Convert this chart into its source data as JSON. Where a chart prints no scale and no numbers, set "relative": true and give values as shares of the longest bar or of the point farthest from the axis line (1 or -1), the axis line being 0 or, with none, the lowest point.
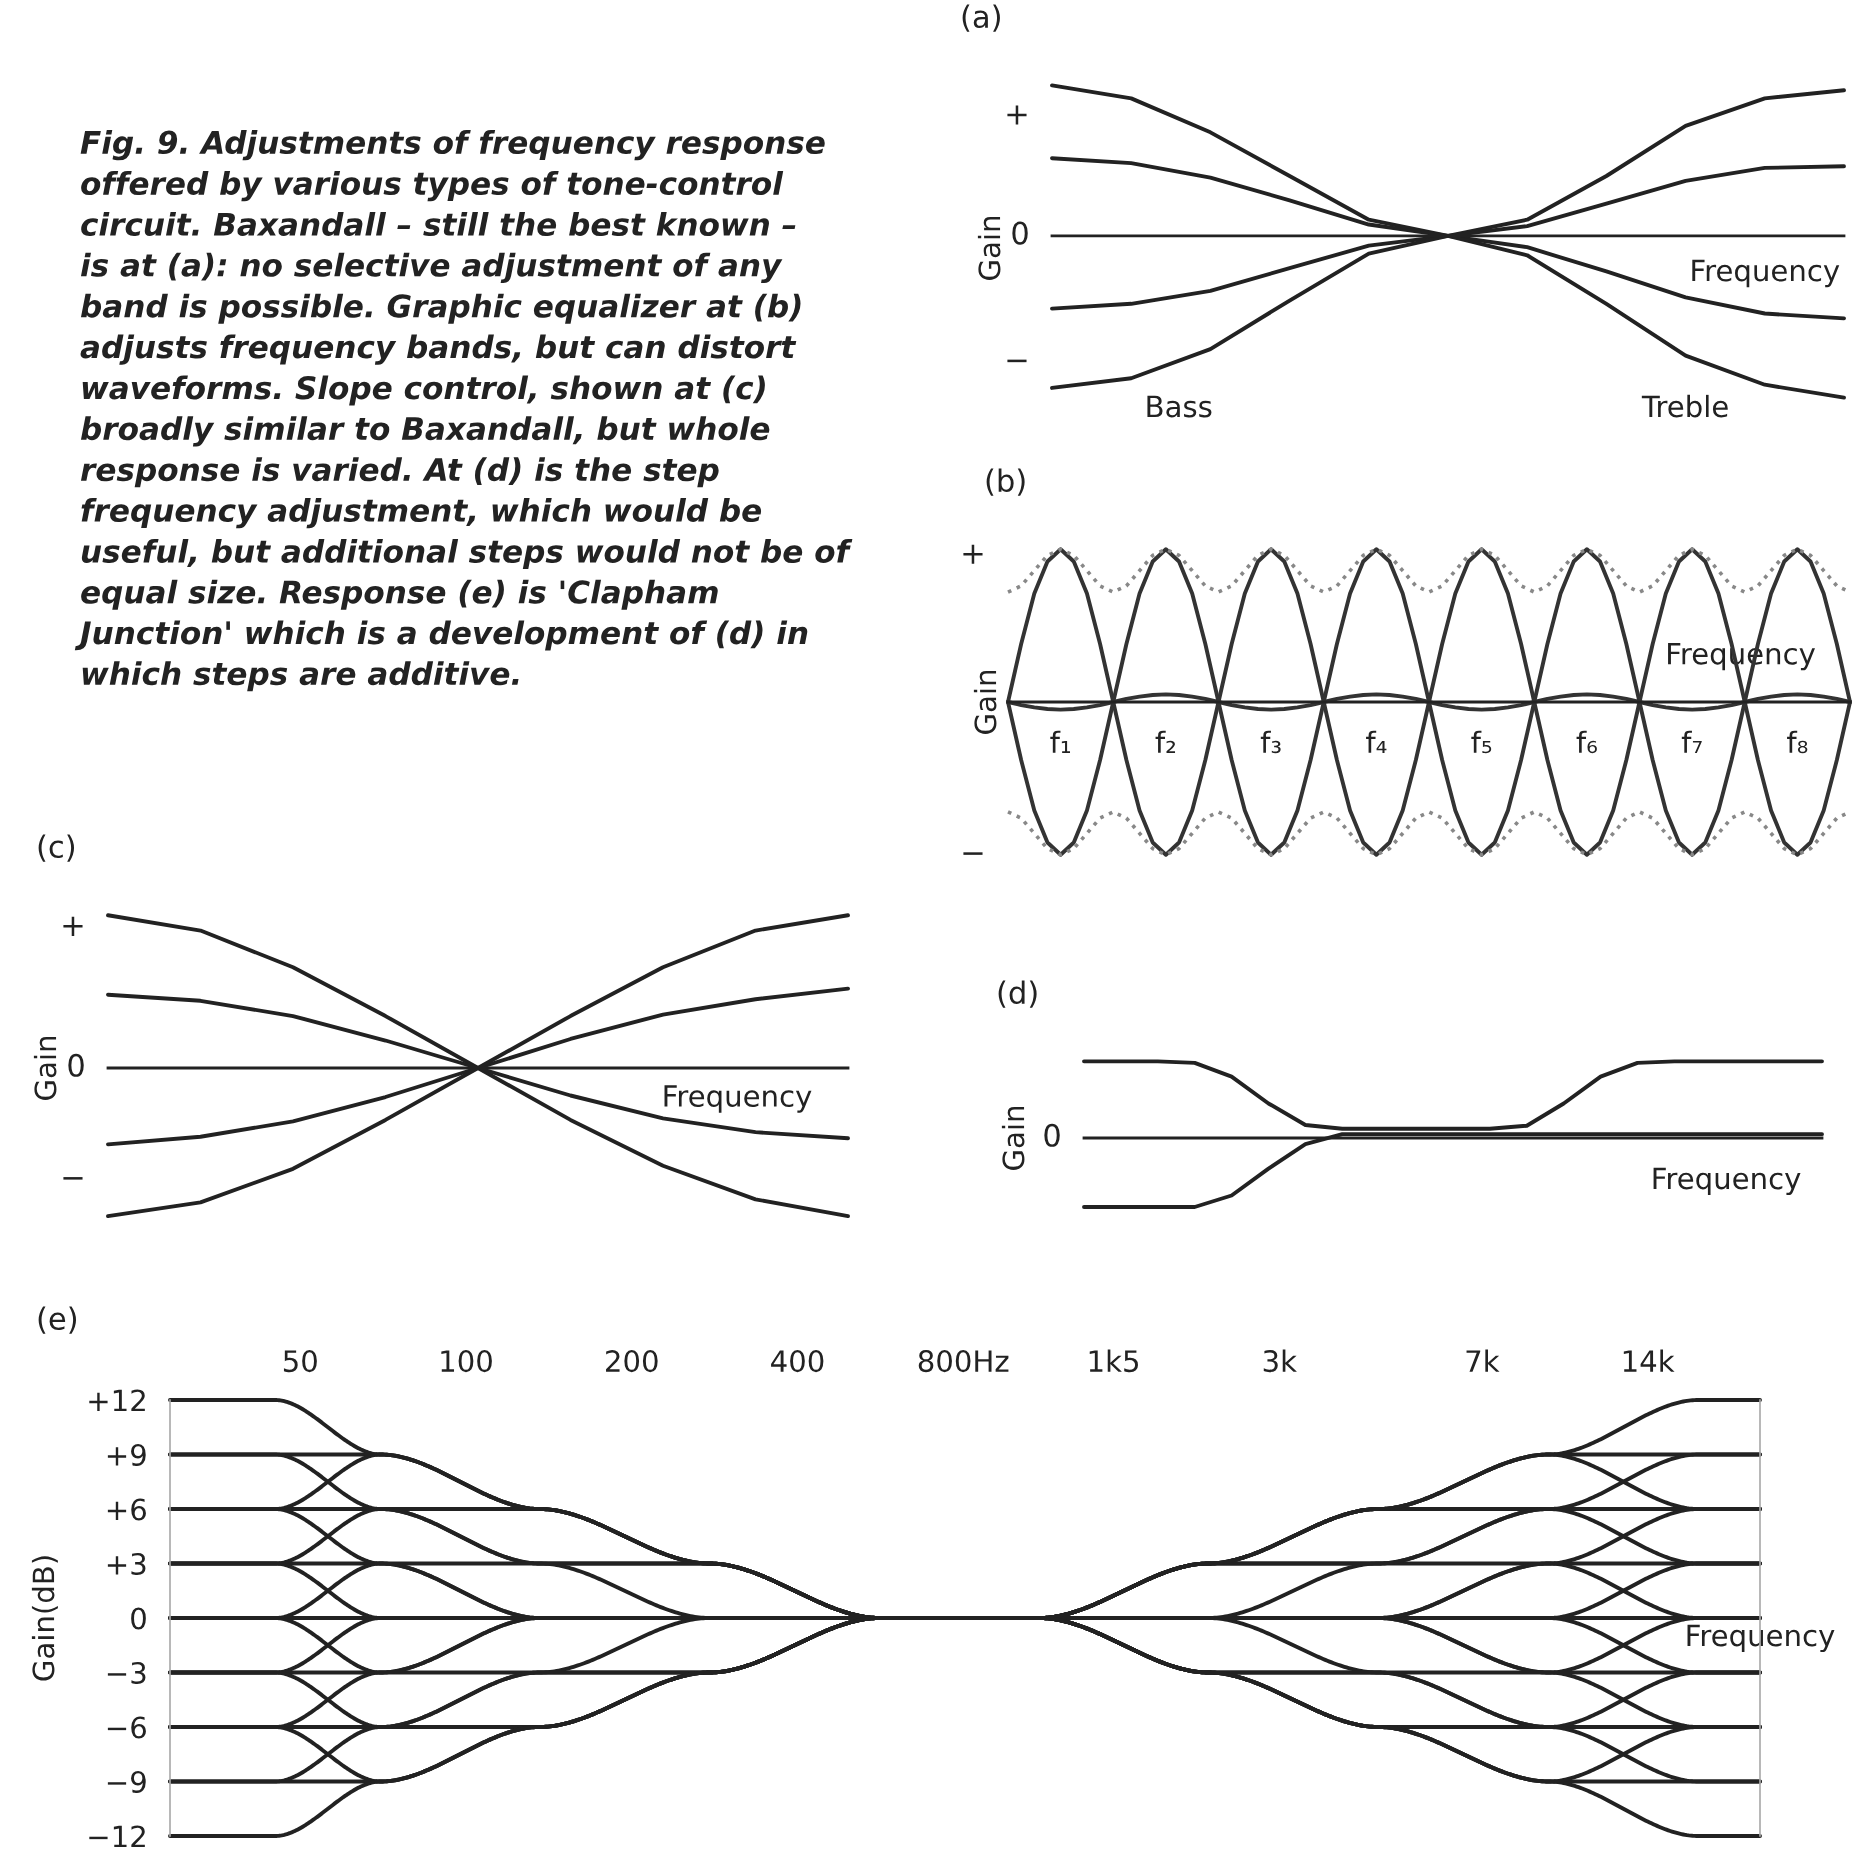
{
  "chart_data": [
    {
      "type": "line",
      "title": "(a)",
      "ylabel": "Gain",
      "relative": true,
      "categories": [
        null,
        null,
        null,
        null,
        null,
        null,
        null,
        null,
        null,
        null,
        null
      ],
      "series": [
        {
          "color": "#222222",
          "values": [
            0.93,
            0.85,
            0.64,
            0.37,
            0.1,
            0,
            0.1,
            0.37,
            0.68,
            0.85,
            0.9
          ]
        },
        {
          "color": "#222222",
          "values": [
            0.48,
            0.45,
            0.36,
            0.22,
            0.07,
            0,
            0.06,
            0.2,
            0.34,
            0.42,
            0.43
          ]
        },
        {
          "color": "#222222",
          "values": [
            -0.45,
            -0.42,
            -0.34,
            -0.2,
            -0.06,
            0,
            -0.07,
            -0.22,
            -0.38,
            -0.48,
            -0.51
          ]
        },
        {
          "color": "#222222",
          "values": [
            -0.94,
            -0.88,
            -0.7,
            -0.4,
            -0.11,
            0,
            -0.12,
            -0.42,
            -0.74,
            -0.92,
            -1.0
          ]
        }
      ],
      "annotations": [
        "Fig. 9. Adjustments of frequency response\noffered by various types of tone-control\ncircuit. Baxandall – still the best known –\nis at (a): no selective adjustment of any\nband is possible. Graphic equalizer at (b)\nadjusts frequency bands, but can distort\nwaveforms. Slope control, shown at (c)\nbroadly similar to Baxandall, but whole\nresponse is varied. At (d) is the step\nfrequency adjustment, which would be\nuseful, but additional steps would not be of\nequal size. Response (e) is 'Clapham\nJunction' which is a development of (d) in\nwhich steps are additive.",
        "+",
        "0",
        "−",
        "Frequency",
        "Bass",
        "Treble"
      ]
    },
    {
      "type": "line",
      "title": "(b)",
      "ylabel": "Gain",
      "relative": true,
      "categories": [
        null,
        null,
        null,
        null,
        null,
        null,
        null,
        null,
        null,
        null,
        null,
        null,
        null,
        null,
        null,
        null,
        null,
        null,
        null,
        null,
        null,
        null,
        null,
        null,
        null,
        null,
        null,
        null,
        null,
        null,
        null,
        null,
        null,
        null,
        null,
        null,
        null,
        null,
        null,
        null,
        null,
        null,
        null,
        null,
        null,
        null,
        null,
        null,
        null,
        null,
        null,
        null,
        null,
        null,
        null,
        null,
        null,
        null,
        null,
        null,
        null,
        null,
        null,
        null,
        null
      ],
      "series": [
        {
          "color": "#333333",
          "values": [
            0,
            0.38,
            0.71,
            0.92,
            1,
            0.92,
            0.71,
            0.38,
            0,
            -0.38,
            -0.71,
            -0.92,
            -1,
            -0.92,
            -0.71,
            -0.38,
            0,
            0.38,
            0.71,
            0.92,
            1,
            0.92,
            0.71,
            0.38,
            0,
            -0.38,
            -0.71,
            -0.92,
            -1,
            -0.92,
            -0.71,
            -0.38,
            0,
            0.38,
            0.71,
            0.92,
            1,
            0.92,
            0.71,
            0.38,
            0,
            -0.38,
            -0.71,
            -0.92,
            -1,
            -0.92,
            -0.71,
            -0.38,
            0,
            0.38,
            0.71,
            0.92,
            1,
            0.92,
            0.71,
            0.38,
            0,
            -0.38,
            -0.71,
            -0.92,
            -1,
            -0.92,
            -0.71,
            -0.38,
            0
          ]
        },
        {
          "color": "#333333",
          "values": [
            0,
            -0.38,
            -0.71,
            -0.92,
            -1,
            -0.92,
            -0.71,
            -0.38,
            0,
            0.38,
            0.71,
            0.92,
            1,
            0.92,
            0.71,
            0.38,
            0,
            -0.38,
            -0.71,
            -0.92,
            -1,
            -0.92,
            -0.71,
            -0.38,
            0,
            0.38,
            0.71,
            0.92,
            1,
            0.92,
            0.71,
            0.38,
            0,
            -0.38,
            -0.71,
            -0.92,
            -1,
            -0.92,
            -0.71,
            -0.38,
            0,
            0.38,
            0.71,
            0.92,
            1,
            0.92,
            0.71,
            0.38,
            0,
            -0.38,
            -0.71,
            -0.92,
            -1,
            -0.92,
            -0.71,
            -0.38,
            0,
            0.38,
            0.71,
            0.92,
            1,
            0.92,
            0.71,
            0.38,
            0
          ]
        },
        {
          "color": "#333333",
          "values": [
            0,
            -0.02,
            -0.035,
            -0.046,
            -0.05,
            -0.046,
            -0.035,
            -0.02,
            0,
            0.02,
            0.035,
            0.046,
            0.05,
            0.046,
            0.035,
            0.02,
            0,
            -0.02,
            -0.035,
            -0.046,
            -0.05,
            -0.046,
            -0.035,
            -0.02,
            0,
            0.02,
            0.035,
            0.046,
            0.05,
            0.046,
            0.035,
            0.02,
            0,
            -0.02,
            -0.035,
            -0.046,
            -0.05,
            -0.046,
            -0.035,
            -0.02,
            0,
            0.02,
            0.035,
            0.046,
            0.05,
            0.046,
            0.035,
            0.02,
            0,
            -0.02,
            -0.035,
            -0.046,
            -0.05,
            -0.046,
            -0.035,
            -0.02,
            0,
            0.02,
            0.035,
            0.046,
            0.05,
            0.046,
            0.035,
            0.02,
            0
          ]
        },
        {
          "color": "#888888",
          "line_style": "dotted",
          "values": [
            0.72,
            0.76,
            0.86,
            0.96,
            1,
            0.96,
            0.86,
            0.76,
            0.72,
            0.76,
            0.86,
            0.96,
            1,
            0.96,
            0.86,
            0.76,
            0.72,
            0.76,
            0.86,
            0.96,
            1,
            0.96,
            0.86,
            0.76,
            0.72,
            0.76,
            0.86,
            0.96,
            1,
            0.96,
            0.86,
            0.76,
            0.72,
            0.76,
            0.86,
            0.96,
            1,
            0.96,
            0.86,
            0.76,
            0.72,
            0.76,
            0.86,
            0.96,
            1,
            0.96,
            0.86,
            0.76,
            0.72,
            0.76,
            0.86,
            0.96,
            1,
            0.96,
            0.86,
            0.76,
            0.72,
            0.76,
            0.86,
            0.96,
            1,
            0.96,
            0.86,
            0.76,
            0.72
          ]
        },
        {
          "color": "#888888",
          "line_style": "dotted",
          "values": [
            -0.72,
            -0.76,
            -0.86,
            -0.96,
            -1,
            -0.96,
            -0.86,
            -0.76,
            -0.72,
            -0.76,
            -0.86,
            -0.96,
            -1,
            -0.96,
            -0.86,
            -0.76,
            -0.72,
            -0.76,
            -0.86,
            -0.96,
            -1,
            -0.96,
            -0.86,
            -0.76,
            -0.72,
            -0.76,
            -0.86,
            -0.96,
            -1,
            -0.96,
            -0.86,
            -0.76,
            -0.72,
            -0.76,
            -0.86,
            -0.96,
            -1,
            -0.96,
            -0.86,
            -0.76,
            -0.72,
            -0.76,
            -0.86,
            -0.96,
            -1,
            -0.96,
            -0.86,
            -0.76,
            -0.72,
            -0.76,
            -0.86,
            -0.96,
            -1,
            -0.96,
            -0.86,
            -0.76,
            -0.72,
            -0.76,
            -0.86,
            -0.96,
            -1,
            -0.96,
            -0.86,
            -0.76,
            -0.72
          ]
        }
      ],
      "annotations": [
        "+",
        "−",
        "f₁",
        "f₂",
        "f₃",
        "f₄",
        "f₅",
        "f₆",
        "f₇",
        "f₈",
        "Frequency"
      ]
    },
    {
      "type": "line",
      "title": "(c)",
      "ylabel": "Gain",
      "relative": true,
      "categories": [
        null,
        null,
        null,
        null,
        null,
        null,
        null,
        null,
        null
      ],
      "series": [
        {
          "color": "#222222",
          "values": [
            1,
            0.9,
            0.66,
            0.34,
            0,
            -0.34,
            -0.64,
            -0.86,
            -0.97
          ]
        },
        {
          "color": "#222222",
          "values": [
            0.48,
            0.44,
            0.34,
            0.18,
            0,
            -0.18,
            -0.33,
            -0.42,
            -0.46
          ]
        },
        {
          "color": "#222222",
          "values": [
            -0.5,
            -0.45,
            -0.35,
            -0.19,
            0,
            0.19,
            0.35,
            0.45,
            0.52
          ]
        },
        {
          "color": "#222222",
          "values": [
            -0.97,
            -0.88,
            -0.66,
            -0.34,
            0,
            0.34,
            0.66,
            0.9,
            1.0
          ]
        }
      ],
      "annotations": [
        "+",
        "0",
        "−",
        "Frequency"
      ]
    },
    {
      "type": "line",
      "title": "(d)",
      "ylabel": "Gain",
      "relative": true,
      "categories": [
        null,
        null,
        null,
        null,
        null,
        null,
        null,
        null,
        null,
        null,
        null,
        null,
        null,
        null,
        null,
        null,
        null,
        null,
        null,
        null,
        null
      ],
      "series": [
        {
          "color": "#222222",
          "values": [
            1,
            1,
            1,
            0.98,
            0.8,
            0.45,
            0.17,
            0.12,
            0.12,
            0.12,
            0.12,
            0.12,
            0.16,
            0.45,
            0.8,
            0.98,
            1,
            1,
            1,
            1,
            1
          ]
        },
        {
          "color": "#222222",
          "values": [
            -0.9,
            -0.9,
            -0.9,
            -0.9,
            -0.75,
            -0.4,
            -0.08,
            0.05,
            0.05,
            0.05,
            0.05,
            0.05,
            0.05,
            0.05,
            0.05,
            0.05,
            0.05,
            0.05,
            0.05,
            0.05,
            0.05
          ]
        }
      ],
      "annotations": [
        "0",
        "Frequency"
      ]
    },
    {
      "type": "line",
      "title": "(e)",
      "ylabel": "Gain(dB)",
      "log": "x",
      "x": [
        29,
        45,
        70,
        136,
        277,
        564,
        1100,
        2230,
        4540,
        9250,
        17300,
        22400
      ],
      "xlim": [
        29,
        22400
      ],
      "xticks": [
        50,
        100,
        200,
        400,
        {
          "value": 800,
          "label": "800Hz"
        },
        {
          "value": 1500,
          "label": "1k5"
        },
        {
          "value": 3000,
          "label": "3k"
        },
        {
          "value": 7000,
          "label": "7k"
        },
        {
          "value": 14000,
          "label": "14k"
        }
      ],
      "ylim": [
        -12,
        12
      ],
      "yticks": [
        {
          "value": 12,
          "label": "+12"
        },
        {
          "value": 9,
          "label": "+9"
        },
        {
          "value": 6,
          "label": "+6"
        },
        {
          "value": 3,
          "label": "+3"
        },
        0,
        {
          "value": -3,
          "label": "−3"
        },
        {
          "value": -6,
          "label": "−6"
        },
        {
          "value": -9,
          "label": "−9"
        },
        {
          "value": -12,
          "label": "−12"
        }
      ],
      "series": [
        {
          "color": "#222222",
          "values": [
            12,
            12,
            9,
            6,
            3,
            0,
            0,
            3,
            6,
            9,
            12,
            12
          ]
        },
        {
          "color": "#222222",
          "values": [
            9,
            9,
            9,
            6,
            3,
            0,
            0,
            3,
            6,
            6,
            6,
            6
          ]
        },
        {
          "color": "#222222",
          "values": [
            9,
            9,
            6,
            3,
            0,
            0,
            0,
            0,
            0,
            0,
            3,
            3
          ]
        },
        {
          "color": "#222222",
          "values": [
            6,
            6,
            9,
            6,
            3,
            0,
            0,
            0,
            0,
            0,
            -3,
            -3
          ]
        },
        {
          "color": "#222222",
          "values": [
            6,
            6,
            6,
            6,
            3,
            0,
            0,
            -3,
            -6,
            -6,
            -6,
            -6
          ]
        },
        {
          "color": "#222222",
          "values": [
            6,
            6,
            3,
            0,
            0,
            0,
            0,
            -3,
            -6,
            -9,
            -12,
            -12
          ]
        },
        {
          "color": "#222222",
          "values": [
            3,
            3,
            6,
            3,
            3,
            0,
            0,
            3,
            6,
            9,
            6,
            6
          ]
        },
        {
          "color": "#222222",
          "values": [
            3,
            3,
            3,
            3,
            3,
            0,
            0,
            3,
            3,
            3,
            3,
            3
          ]
        },
        {
          "color": "#222222",
          "values": [
            3,
            3,
            0,
            0,
            0,
            0,
            0,
            0,
            0,
            -3,
            0,
            0
          ]
        },
        {
          "color": "#222222",
          "values": [
            0,
            0,
            3,
            0,
            0,
            0,
            0,
            0,
            0,
            -3,
            -6,
            -6
          ]
        },
        {
          "color": "#222222",
          "values": [
            0,
            0,
            0,
            0,
            0,
            0,
            0,
            -3,
            -6,
            -9,
            -9,
            -9
          ]
        },
        {
          "color": "#222222",
          "values": [
            0,
            0,
            -3,
            0,
            0,
            0,
            0,
            0,
            3,
            6,
            9,
            9
          ]
        },
        {
          "color": "#222222",
          "values": [
            -3,
            -3,
            0,
            0,
            0,
            0,
            0,
            3,
            3,
            6,
            3,
            3
          ]
        },
        {
          "color": "#222222",
          "values": [
            -3,
            -3,
            -3,
            -3,
            -3,
            0,
            0,
            0,
            0,
            0,
            0,
            0
          ]
        },
        {
          "color": "#222222",
          "values": [
            -3,
            -3,
            -6,
            -3,
            -3,
            0,
            0,
            -3,
            -3,
            -6,
            -3,
            -3
          ]
        },
        {
          "color": "#222222",
          "values": [
            -6,
            -6,
            -3,
            0,
            0,
            0,
            0,
            0,
            -3,
            -6,
            -9,
            -9
          ]
        },
        {
          "color": "#222222",
          "values": [
            -6,
            -6,
            -6,
            -6,
            -3,
            0,
            0,
            3,
            6,
            9,
            9,
            9
          ]
        },
        {
          "color": "#222222",
          "values": [
            -6,
            -6,
            -9,
            -6,
            -3,
            0,
            0,
            0,
            0,
            3,
            6,
            6
          ]
        },
        {
          "color": "#222222",
          "values": [
            -9,
            -9,
            -6,
            -3,
            0,
            0,
            0,
            0,
            0,
            3,
            0,
            0
          ]
        },
        {
          "color": "#222222",
          "values": [
            -9,
            -9,
            -9,
            -6,
            -3,
            0,
            0,
            -3,
            -3,
            -3,
            -3,
            -3
          ]
        },
        {
          "color": "#222222",
          "values": [
            -12,
            -12,
            -9,
            -6,
            -3,
            0,
            0,
            -3,
            -6,
            -9,
            -6,
            -6
          ]
        }
      ],
      "annotations": [
        "Frequency"
      ]
    }
  ]
}
